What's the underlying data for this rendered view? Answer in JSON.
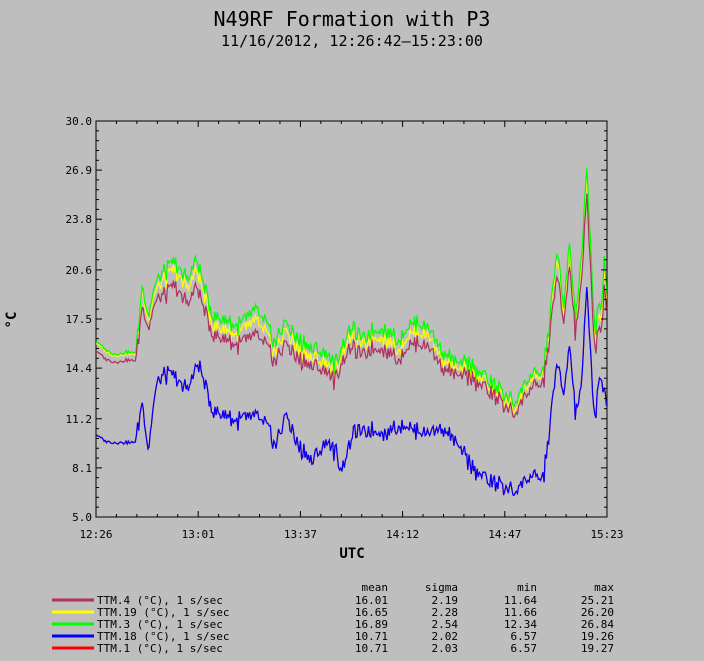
{
  "chart_data": {
    "type": "line",
    "title": "N49RF Formation with P3",
    "subtitle": "11/16/2012, 12:26:42–15:23:00",
    "xlabel": "UTC",
    "ylabel": "°C",
    "ylim": [
      5.0,
      30.0
    ],
    "yticks": [
      "5.0",
      "8.1",
      "11.2",
      "14.4",
      "17.5",
      "20.6",
      "23.8",
      "26.9",
      "30.0"
    ],
    "xticks": [
      "12:26",
      "13:01",
      "13:37",
      "14:12",
      "14:47",
      "15:23"
    ],
    "x_unit": "minutes since 12:26",
    "x": [
      0,
      3,
      6,
      9,
      10,
      12,
      14,
      16,
      18,
      21,
      24,
      27,
      30,
      33,
      34,
      36,
      40,
      45,
      50,
      55,
      60,
      62,
      64,
      66,
      70,
      75,
      80,
      83,
      85,
      88,
      90,
      93,
      96,
      100,
      105,
      110,
      115,
      120,
      125,
      130,
      135,
      140,
      145,
      150,
      155,
      160,
      162,
      164,
      166,
      168,
      170,
      172,
      173,
      174,
      175,
      176,
      177
    ],
    "series": [
      {
        "name": "TTM.4 (°C), 1 s/sec",
        "color": "#b03060",
        "values": [
          15.5,
          15.0,
          14.8,
          14.8,
          14.9,
          14.9,
          14.9,
          18.5,
          17.0,
          18.8,
          19.0,
          19.5,
          18.8,
          18.7,
          19.5,
          19.0,
          16.6,
          16.2,
          15.8,
          16.6,
          15.5,
          14.8,
          15.5,
          16.0,
          15.0,
          14.5,
          14.2,
          13.5,
          15.0,
          15.8,
          15.5,
          15.2,
          15.8,
          15.5,
          15.0,
          16.0,
          15.8,
          14.5,
          13.8,
          13.8,
          13.2,
          12.3,
          11.6,
          13.0,
          13.5,
          20.5,
          17.0,
          21.0,
          16.5,
          19.5,
          25.2,
          18.0,
          15.2,
          17.0,
          16.8,
          19.0,
          17.8
        ]
      },
      {
        "name": "TTM.19 (°C), 1 s/sec",
        "color": "#ffff00",
        "values": [
          16.0,
          15.5,
          15.2,
          15.2,
          15.3,
          15.3,
          15.3,
          19.5,
          17.5,
          19.5,
          20.0,
          20.5,
          19.8,
          19.7,
          20.5,
          20.0,
          17.2,
          16.8,
          16.5,
          17.5,
          16.2,
          15.4,
          16.2,
          16.8,
          15.6,
          15.0,
          14.7,
          14.0,
          15.6,
          16.5,
          16.2,
          15.8,
          16.5,
          16.2,
          15.6,
          16.7,
          16.5,
          15.0,
          14.2,
          14.2,
          13.6,
          12.7,
          11.9,
          13.5,
          14.0,
          21.5,
          17.6,
          22.0,
          17.0,
          20.5,
          26.2,
          18.8,
          15.8,
          17.8,
          17.5,
          19.8,
          18.5
        ]
      },
      {
        "name": "TTM.3 (°C), 1 s/sec",
        "color": "#00ff00",
        "values": [
          16.1,
          15.6,
          15.3,
          15.3,
          15.4,
          15.4,
          15.4,
          19.8,
          17.8,
          20.0,
          20.5,
          21.0,
          20.3,
          20.3,
          21.2,
          20.6,
          17.8,
          17.4,
          17.0,
          18.2,
          16.8,
          16.0,
          16.8,
          17.3,
          16.2,
          15.6,
          15.3,
          14.5,
          16.0,
          17.0,
          16.7,
          16.2,
          16.9,
          16.8,
          16.2,
          17.3,
          17.0,
          15.5,
          14.6,
          14.6,
          13.9,
          13.0,
          12.3,
          13.8,
          14.2,
          22.0,
          18.0,
          22.5,
          17.3,
          21.0,
          26.8,
          19.5,
          16.3,
          18.5,
          18.2,
          20.8,
          19.0
        ]
      },
      {
        "name": "TTM.18 (°C), 1 s/sec",
        "color": "#0000ff",
        "values": [
          10.2,
          9.8,
          9.7,
          9.7,
          9.7,
          9.7,
          9.8,
          12.5,
          9.3,
          13.5,
          14.0,
          13.8,
          13.2,
          13.5,
          14.2,
          14.5,
          11.8,
          11.4,
          11.0,
          11.5,
          10.5,
          9.5,
          10.5,
          11.5,
          9.5,
          8.5,
          9.8,
          9.0,
          8.2,
          9.8,
          10.5,
          10.3,
          10.6,
          10.2,
          10.8,
          10.5,
          10.3,
          10.7,
          9.5,
          8.2,
          7.5,
          7.0,
          6.7,
          7.5,
          7.5,
          15.0,
          12.5,
          16.0,
          11.5,
          13.0,
          19.3,
          13.0,
          11.0,
          13.5,
          14.0,
          12.5,
          12.0
        ]
      },
      {
        "name": "TTM.1 (°C), 1 s/sec",
        "color": "#ff0000",
        "values": [
          10.2,
          9.8,
          9.7,
          9.7,
          9.7,
          9.7,
          9.8,
          12.5,
          9.3,
          13.5,
          14.0,
          13.8,
          13.2,
          13.5,
          14.2,
          14.5,
          11.8,
          11.4,
          11.0,
          11.5,
          10.5,
          9.5,
          10.5,
          11.5,
          9.5,
          8.5,
          9.8,
          9.0,
          8.2,
          9.8,
          10.5,
          10.3,
          10.6,
          10.2,
          10.8,
          10.5,
          10.3,
          10.7,
          9.5,
          8.2,
          7.5,
          7.0,
          6.7,
          7.5,
          7.5,
          15.0,
          12.5,
          16.0,
          11.5,
          13.0,
          19.3,
          13.0,
          11.0,
          13.5,
          14.0,
          12.5,
          12.0
        ]
      }
    ],
    "draw_order": [
      4,
      1,
      2,
      0,
      3
    ],
    "legend": {
      "headers": [
        "mean",
        "sigma",
        "min",
        "max"
      ],
      "rows": [
        {
          "label": "TTM.4 (°C), 1 s/sec",
          "color": "#b03060",
          "mean": "16.01",
          "sigma": "2.19",
          "min": "11.64",
          "max": "25.21"
        },
        {
          "label": "TTM.19 (°C), 1 s/sec",
          "color": "#ffff00",
          "mean": "16.65",
          "sigma": "2.28",
          "min": "11.66",
          "max": "26.20"
        },
        {
          "label": "TTM.3 (°C), 1 s/sec",
          "color": "#00ff00",
          "mean": "16.89",
          "sigma": "2.54",
          "min": "12.34",
          "max": "26.84"
        },
        {
          "label": "TTM.18 (°C), 1 s/sec",
          "color": "#0000ff",
          "mean": "10.71",
          "sigma": "2.02",
          "min": "6.57",
          "max": "19.26"
        },
        {
          "label": "TTM.1 (°C), 1 s/sec",
          "color": "#ff0000",
          "mean": "10.71",
          "sigma": "2.03",
          "min": "6.57",
          "max": "19.27"
        }
      ]
    },
    "colors": {
      "background": "#bebebe",
      "axes": "#000000"
    }
  }
}
